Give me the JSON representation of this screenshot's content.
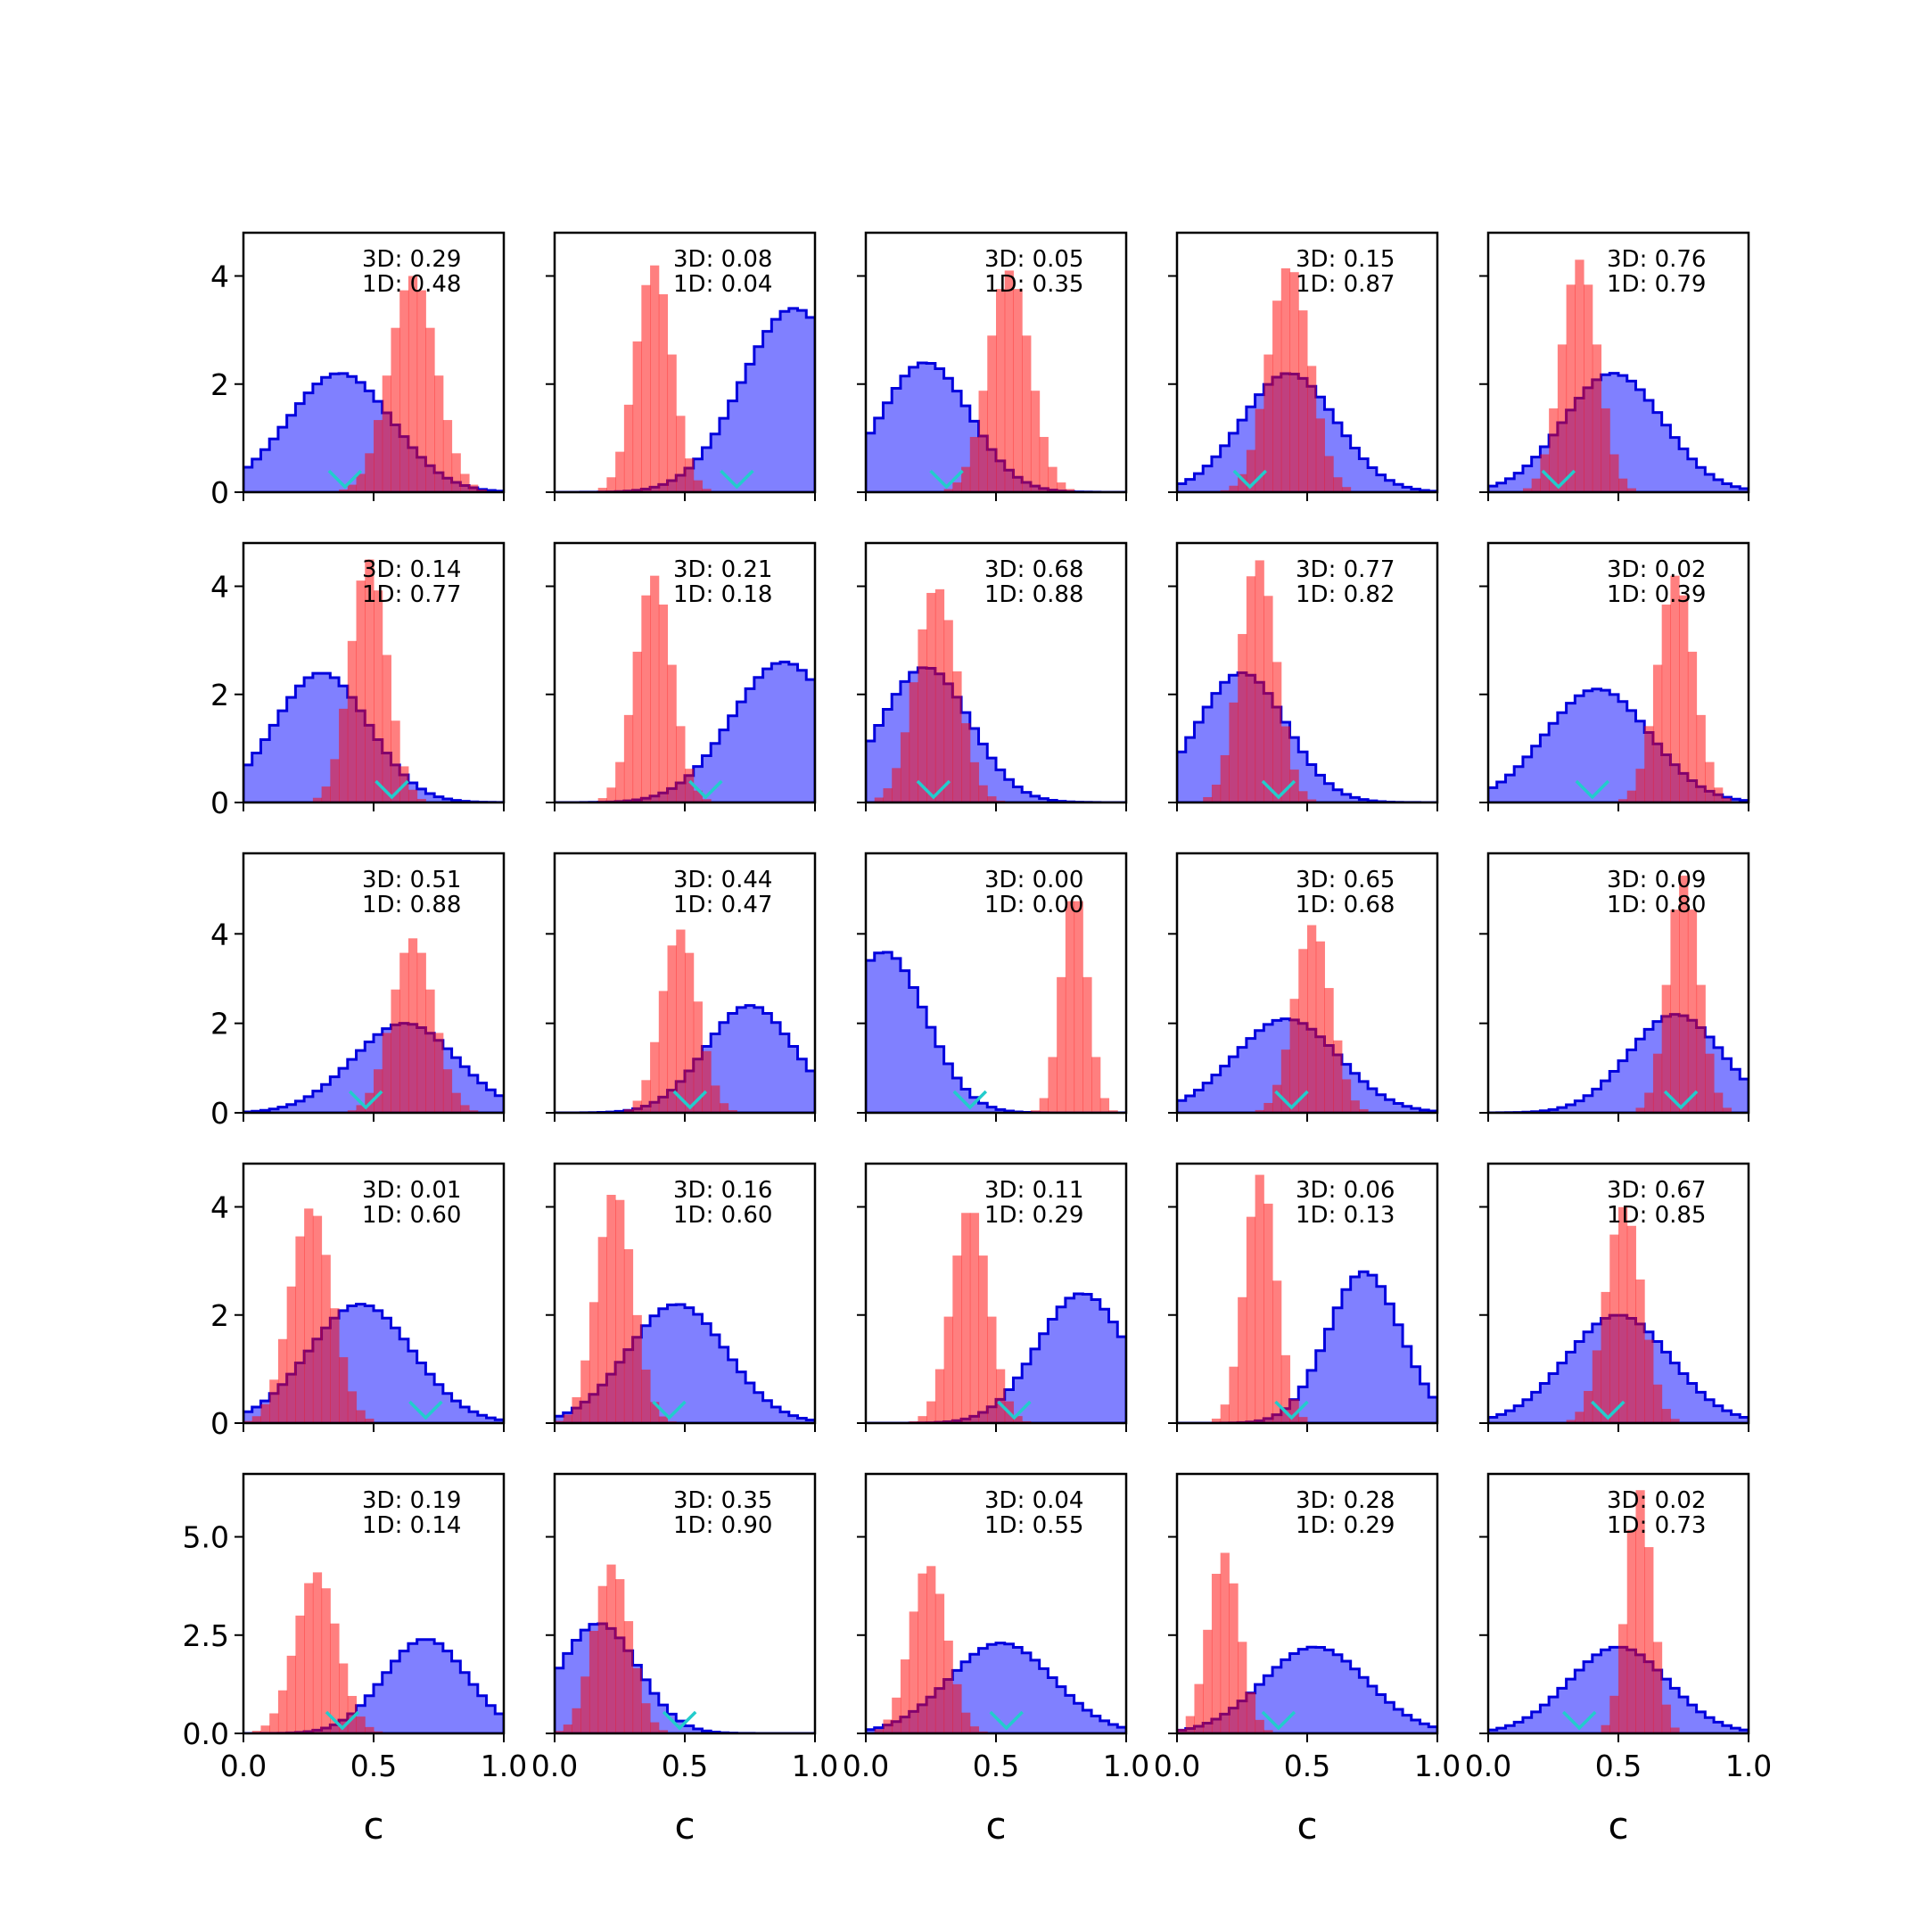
{
  "chart_data": {
    "type": "histogram-grid",
    "rows": 5,
    "cols": 5,
    "xlabel": "c",
    "xlim": [
      0,
      1
    ],
    "xticks": [
      "0.0",
      "0.5",
      "1.0"
    ],
    "row_ylims": [
      [
        0,
        4.8
      ],
      [
        0,
        4.8
      ],
      [
        0,
        5.8
      ],
      [
        0,
        4.8
      ],
      [
        0,
        6.6
      ]
    ],
    "row_yticks": [
      [
        "0",
        "2",
        "4"
      ],
      [
        "0",
        "2",
        "4"
      ],
      [
        "0",
        "2",
        "4"
      ],
      [
        "0",
        "2",
        "4"
      ],
      [
        "0.0",
        "2.5",
        "5.0"
      ]
    ],
    "colors": {
      "blue_fill": "#8080ff",
      "blue_edge": "#0000dd",
      "red_fill": "#ff8080",
      "marker": "#22cccc"
    },
    "panels": [
      {
        "a3d": "3D: 0.29",
        "a1d": "1D: 0.48",
        "blue": {
          "mu": 0.37,
          "sd": 0.2,
          "peak": 2.2
        },
        "red": {
          "mu": 0.65,
          "sd": 0.09,
          "peak": 4.0
        },
        "marker": 0.39
      },
      {
        "a3d": "3D: 0.08",
        "a1d": "1D: 0.04",
        "blue": {
          "mu": 0.92,
          "sd": 0.2,
          "peak": 3.4
        },
        "red": {
          "mu": 0.38,
          "sd": 0.07,
          "peak": 4.2
        },
        "marker": 0.7
      },
      {
        "a3d": "3D: 0.05",
        "a1d": "1D: 0.35",
        "blue": {
          "mu": 0.23,
          "sd": 0.17,
          "peak": 2.4
        },
        "red": {
          "mu": 0.55,
          "sd": 0.08,
          "peak": 4.1
        },
        "marker": 0.31
      },
      {
        "a3d": "3D: 0.15",
        "a1d": "1D: 0.87",
        "blue": {
          "mu": 0.43,
          "sd": 0.18,
          "peak": 2.2
        },
        "red": {
          "mu": 0.43,
          "sd": 0.08,
          "peak": 4.2
        },
        "marker": 0.28
      },
      {
        "a3d": "3D: 0.76",
        "a1d": "1D: 0.79",
        "blue": {
          "mu": 0.48,
          "sd": 0.19,
          "peak": 2.2
        },
        "red": {
          "mu": 0.35,
          "sd": 0.07,
          "peak": 4.3
        },
        "marker": 0.27
      },
      {
        "a3d": "3D: 0.14",
        "a1d": "1D: 0.77",
        "blue": {
          "mu": 0.3,
          "sd": 0.18,
          "peak": 2.4
        },
        "red": {
          "mu": 0.48,
          "sd": 0.07,
          "peak": 4.5
        },
        "marker": 0.57
      },
      {
        "a3d": "3D: 0.21",
        "a1d": "1D: 0.18",
        "blue": {
          "mu": 0.88,
          "sd": 0.2,
          "peak": 2.6
        },
        "red": {
          "mu": 0.38,
          "sd": 0.07,
          "peak": 4.2
        },
        "marker": 0.58
      },
      {
        "a3d": "3D: 0.68",
        "a1d": "1D: 0.88",
        "blue": {
          "mu": 0.23,
          "sd": 0.17,
          "peak": 2.5
        },
        "red": {
          "mu": 0.27,
          "sd": 0.08,
          "peak": 4.0
        },
        "marker": 0.26
      },
      {
        "a3d": "3D: 0.77",
        "a1d": "1D: 0.82",
        "blue": {
          "mu": 0.25,
          "sd": 0.17,
          "peak": 2.4
        },
        "red": {
          "mu": 0.31,
          "sd": 0.07,
          "peak": 4.5
        },
        "marker": 0.39
      },
      {
        "a3d": "3D: 0.02",
        "a1d": "1D: 0.39",
        "blue": {
          "mu": 0.42,
          "sd": 0.2,
          "peak": 2.1
        },
        "red": {
          "mu": 0.72,
          "sd": 0.07,
          "peak": 4.2
        },
        "marker": 0.4
      },
      {
        "a3d": "3D: 0.51",
        "a1d": "1D: 0.88",
        "blue": {
          "mu": 0.62,
          "sd": 0.2,
          "peak": 2.0
        },
        "red": {
          "mu": 0.65,
          "sd": 0.08,
          "peak": 3.9
        },
        "marker": 0.47
      },
      {
        "a3d": "3D: 0.44",
        "a1d": "1D: 0.47",
        "blue": {
          "mu": 0.75,
          "sd": 0.17,
          "peak": 2.4
        },
        "red": {
          "mu": 0.48,
          "sd": 0.07,
          "peak": 4.1
        },
        "marker": 0.52
      },
      {
        "a3d": "3D: 0.00",
        "a1d": "1D: 0.00",
        "blue": {
          "mu": 0.07,
          "sd": 0.16,
          "peak": 3.6
        },
        "red": {
          "mu": 0.8,
          "sd": 0.05,
          "peak": 5.0
        },
        "marker": 0.4
      },
      {
        "a3d": "3D: 0.65",
        "a1d": "1D: 0.68",
        "blue": {
          "mu": 0.42,
          "sd": 0.2,
          "peak": 2.1
        },
        "red": {
          "mu": 0.52,
          "sd": 0.07,
          "peak": 4.2
        },
        "marker": 0.44
      },
      {
        "a3d": "3D: 0.09",
        "a1d": "1D: 0.80",
        "blue": {
          "mu": 0.72,
          "sd": 0.18,
          "peak": 2.2
        },
        "red": {
          "mu": 0.75,
          "sd": 0.06,
          "peak": 5.3
        },
        "marker": 0.74
      },
      {
        "a3d": "3D: 0.01",
        "a1d": "1D: 0.60",
        "blue": {
          "mu": 0.45,
          "sd": 0.2,
          "peak": 2.2
        },
        "red": {
          "mu": 0.26,
          "sd": 0.08,
          "peak": 4.0
        },
        "marker": 0.7
      },
      {
        "a3d": "3D: 0.16",
        "a1d": "1D: 0.60",
        "blue": {
          "mu": 0.47,
          "sd": 0.19,
          "peak": 2.2
        },
        "red": {
          "mu": 0.23,
          "sd": 0.07,
          "peak": 4.3
        },
        "marker": 0.44
      },
      {
        "a3d": "3D: 0.11",
        "a1d": "1D: 0.29",
        "blue": {
          "mu": 0.83,
          "sd": 0.17,
          "peak": 2.4
        },
        "red": {
          "mu": 0.4,
          "sd": 0.07,
          "peak": 4.0
        },
        "marker": 0.57
      },
      {
        "a3d": "3D: 0.06",
        "a1d": "1D: 0.13",
        "blue": {
          "mu": 0.72,
          "sd": 0.14,
          "peak": 2.8
        },
        "red": {
          "mu": 0.32,
          "sd": 0.06,
          "peak": 4.6
        },
        "marker": 0.44
      },
      {
        "a3d": "3D: 0.67",
        "a1d": "1D: 0.85",
        "blue": {
          "mu": 0.5,
          "sd": 0.2,
          "peak": 2.0
        },
        "red": {
          "mu": 0.52,
          "sd": 0.07,
          "peak": 4.0
        },
        "marker": 0.46
      },
      {
        "a3d": "3D: 0.19",
        "a1d": "1D: 0.14",
        "blue": {
          "mu": 0.7,
          "sd": 0.16,
          "peak": 2.4
        },
        "red": {
          "mu": 0.28,
          "sd": 0.08,
          "peak": 4.1
        },
        "marker": 0.38
      },
      {
        "a3d": "3D: 0.35",
        "a1d": "1D: 0.90",
        "blue": {
          "mu": 0.17,
          "sd": 0.15,
          "peak": 2.8
        },
        "red": {
          "mu": 0.22,
          "sd": 0.07,
          "peak": 4.3
        },
        "marker": 0.48
      },
      {
        "a3d": "3D: 0.04",
        "a1d": "1D: 0.55",
        "blue": {
          "mu": 0.52,
          "sd": 0.2,
          "peak": 2.3
        },
        "red": {
          "mu": 0.24,
          "sd": 0.07,
          "peak": 4.3
        },
        "marker": 0.54
      },
      {
        "a3d": "3D: 0.28",
        "a1d": "1D: 0.29",
        "blue": {
          "mu": 0.53,
          "sd": 0.2,
          "peak": 2.2
        },
        "red": {
          "mu": 0.18,
          "sd": 0.06,
          "peak": 4.6
        },
        "marker": 0.39
      },
      {
        "a3d": "3D: 0.02",
        "a1d": "1D: 0.73",
        "blue": {
          "mu": 0.5,
          "sd": 0.19,
          "peak": 2.2
        },
        "red": {
          "mu": 0.58,
          "sd": 0.05,
          "peak": 6.2
        },
        "marker": 0.35
      }
    ]
  }
}
